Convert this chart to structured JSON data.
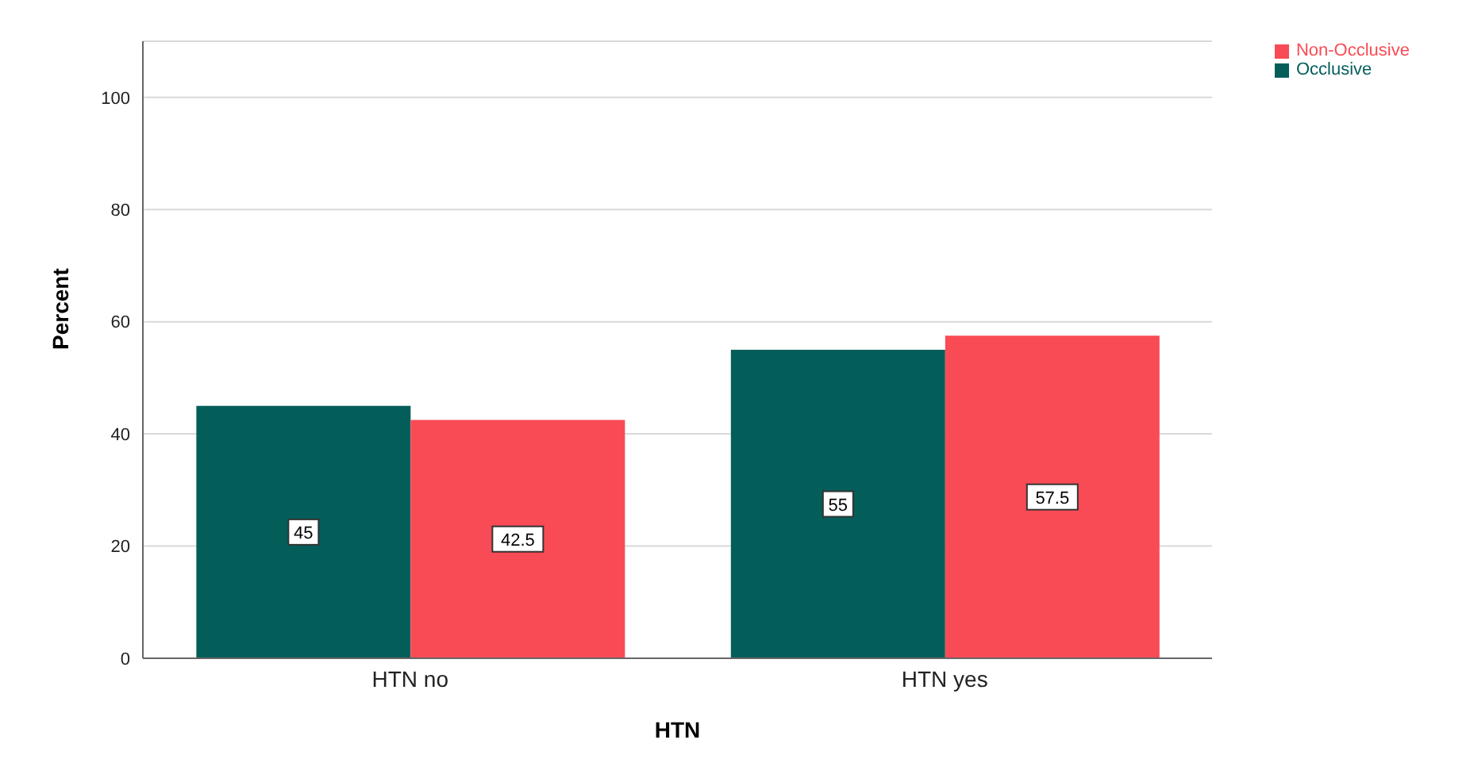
{
  "chart_data": {
    "type": "bar",
    "xlabel": "HTN",
    "ylabel": "Percent",
    "categories": [
      "HTN no",
      "HTN yes"
    ],
    "series": [
      {
        "name": "Occlusive",
        "color": "#035e5a",
        "values": [
          45,
          55
        ]
      },
      {
        "name": "Non-Occlusive",
        "color": "#f94b55",
        "values": [
          42.5,
          57.5
        ]
      }
    ],
    "ylim": [
      0,
      110
    ],
    "yticks": [
      0,
      20,
      40,
      60,
      80,
      100
    ],
    "grid": "y",
    "legend": "top right",
    "data_labels": true
  }
}
